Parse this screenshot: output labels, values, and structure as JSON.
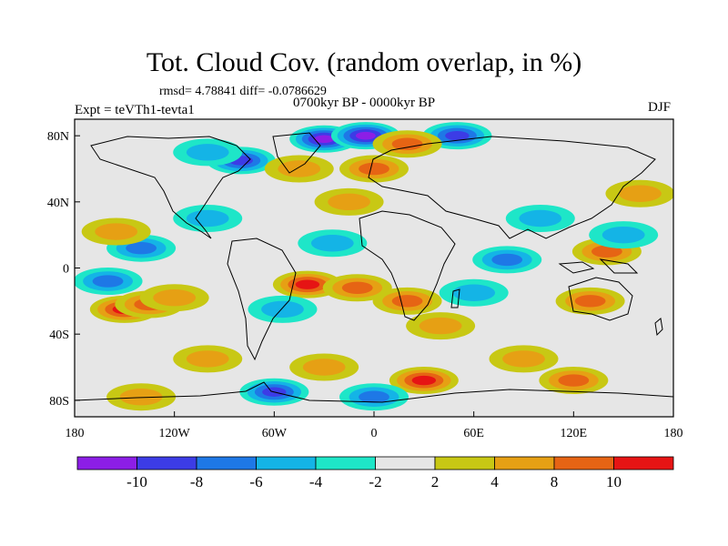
{
  "title": "Tot. Cloud Cov. (random overlap, in %)",
  "stats": "rmsd= 4.78841 diff= -0.0786629",
  "experiment": "Expt = teVTh1-tevta1",
  "period": "0700kyr BP - 0000kyr BP",
  "season": "DJF",
  "map": {
    "x_ticks": [
      "180",
      "120W",
      "60W",
      "0",
      "60E",
      "120E",
      "180"
    ],
    "y_ticks": [
      "80N",
      "40N",
      "0",
      "40S",
      "80S"
    ],
    "background_color": "#e6e6e6"
  },
  "colorbar": {
    "labels": [
      "-10",
      "-8",
      "-6",
      "-4",
      "-2",
      "2",
      "4",
      "8",
      "10"
    ],
    "colors": [
      "#8c1ee6",
      "#3c3ce6",
      "#1e78e6",
      "#14b4e6",
      "#1ee6c8",
      "#e6e6e6",
      "#c8c814",
      "#e6a014",
      "#e66414",
      "#e61414"
    ]
  },
  "anomalies": [
    {
      "lon": -150,
      "lat": -25,
      "v": 10
    },
    {
      "lon": -135,
      "lat": -22,
      "v": 8
    },
    {
      "lon": -120,
      "lat": -18,
      "v": 4
    },
    {
      "lon": -160,
      "lat": -8,
      "v": -6
    },
    {
      "lon": -140,
      "lat": 12,
      "v": -6
    },
    {
      "lon": -155,
      "lat": 22,
      "v": 4
    },
    {
      "lon": -100,
      "lat": 30,
      "v": -4
    },
    {
      "lon": -80,
      "lat": 65,
      "v": -8
    },
    {
      "lon": -100,
      "lat": 70,
      "v": -4
    },
    {
      "lon": -30,
      "lat": 78,
      "v": -10
    },
    {
      "lon": -5,
      "lat": 80,
      "v": -10
    },
    {
      "lon": 50,
      "lat": 80,
      "v": -8
    },
    {
      "lon": 20,
      "lat": 75,
      "v": 8
    },
    {
      "lon": -45,
      "lat": 60,
      "v": 4
    },
    {
      "lon": 0,
      "lat": 60,
      "v": 8
    },
    {
      "lon": -15,
      "lat": 40,
      "v": 4
    },
    {
      "lon": -25,
      "lat": 15,
      "v": -4
    },
    {
      "lon": -40,
      "lat": -10,
      "v": 10
    },
    {
      "lon": -10,
      "lat": -12,
      "v": 8
    },
    {
      "lon": -55,
      "lat": -25,
      "v": -4
    },
    {
      "lon": 20,
      "lat": -20,
      "v": 8
    },
    {
      "lon": 40,
      "lat": -35,
      "v": 4
    },
    {
      "lon": 60,
      "lat": -15,
      "v": -4
    },
    {
      "lon": 80,
      "lat": 5,
      "v": -6
    },
    {
      "lon": 100,
      "lat": 30,
      "v": -4
    },
    {
      "lon": 140,
      "lat": 10,
      "v": 8
    },
    {
      "lon": 150,
      "lat": 20,
      "v": -4
    },
    {
      "lon": 130,
      "lat": -20,
      "v": 8
    },
    {
      "lon": 160,
      "lat": 45,
      "v": 4
    },
    {
      "lon": -100,
      "lat": -55,
      "v": 4
    },
    {
      "lon": -30,
      "lat": -60,
      "v": 4
    },
    {
      "lon": 90,
      "lat": -55,
      "v": 4
    },
    {
      "lon": 120,
      "lat": -68,
      "v": 8
    },
    {
      "lon": 30,
      "lat": -68,
      "v": 10
    },
    {
      "lon": -60,
      "lat": -75,
      "v": -8
    },
    {
      "lon": 0,
      "lat": -78,
      "v": -6
    },
    {
      "lon": -140,
      "lat": -78,
      "v": 4
    }
  ]
}
